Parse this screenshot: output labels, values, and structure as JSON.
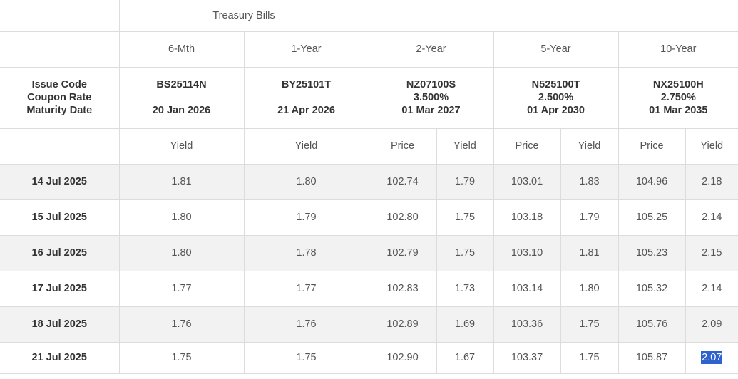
{
  "header": {
    "group_bills": "Treasury Bills",
    "stub_label": [
      "Issue Code",
      "Coupon Rate",
      "Maturity Date"
    ],
    "tenors": [
      "6-Mth",
      "1-Year",
      "2-Year",
      "5-Year",
      "10-Year"
    ],
    "issues": [
      {
        "code": "BS25114N",
        "coupon": "",
        "maturity": "20 Jan 2026"
      },
      {
        "code": "BY25101T",
        "coupon": "",
        "maturity": "21 Apr 2026"
      },
      {
        "code": "NZ07100S",
        "coupon": "3.500%",
        "maturity": "01 Mar 2027"
      },
      {
        "code": "N525100T",
        "coupon": "2.500%",
        "maturity": "01 Apr 2030"
      },
      {
        "code": "NX25100H",
        "coupon": "2.750%",
        "maturity": "01 Mar 2035"
      }
    ],
    "kinds": [
      "Yield",
      "Yield",
      "Price",
      "Yield",
      "Price",
      "Yield",
      "Price",
      "Yield"
    ]
  },
  "rows": [
    {
      "date": "14 Jul 2025",
      "vals": [
        "1.81",
        "1.80",
        "102.74",
        "1.79",
        "103.01",
        "1.83",
        "104.96",
        "2.18"
      ]
    },
    {
      "date": "15 Jul 2025",
      "vals": [
        "1.80",
        "1.79",
        "102.80",
        "1.75",
        "103.18",
        "1.79",
        "105.25",
        "2.14"
      ]
    },
    {
      "date": "16 Jul 2025",
      "vals": [
        "1.80",
        "1.78",
        "102.79",
        "1.75",
        "103.10",
        "1.81",
        "105.23",
        "2.15"
      ]
    },
    {
      "date": "17 Jul 2025",
      "vals": [
        "1.77",
        "1.77",
        "102.83",
        "1.73",
        "103.14",
        "1.80",
        "105.32",
        "2.14"
      ]
    },
    {
      "date": "18 Jul 2025",
      "vals": [
        "1.76",
        "1.76",
        "102.89",
        "1.69",
        "103.36",
        "1.75",
        "105.76",
        "2.09"
      ]
    },
    {
      "date": "21 Jul 2025",
      "vals": [
        "1.75",
        "1.75",
        "102.90",
        "1.67",
        "103.37",
        "1.75",
        "105.87",
        "2.07"
      ]
    }
  ],
  "selection_color": "#2e62cc"
}
